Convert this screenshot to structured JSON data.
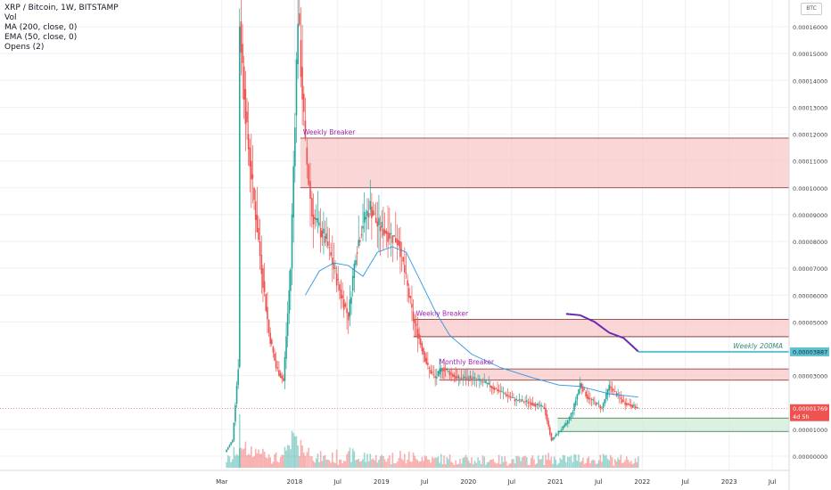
{
  "legend": {
    "symbol": "XRP / Bitcoin, 1W, BITSTAMP",
    "vol": "Vol",
    "ma": "MA (200, close, 0)",
    "ema": "EMA (50, close, 0)",
    "opens": "Opens (2)"
  },
  "currency_button": "BTC",
  "colors": {
    "up": "#26a69a",
    "down": "#ef5350",
    "ema": "#2a96e6",
    "ma200": "#6a2cae",
    "zone_red": "#f8c8c8",
    "zone_green": "#cfeeda",
    "annotation": "#9c27b0",
    "price_tag": "#ef5350",
    "ma_tag": "#5fc1cf"
  },
  "chart_data": {
    "type": "candlestick",
    "y_ticks": [
      "0.00016000",
      "0.00015000",
      "0.00014000",
      "0.00013000",
      "0.00012000",
      "0.00011000",
      "0.00010000",
      "0.00009000",
      "0.00008000",
      "0.00007000",
      "0.00006000",
      "0.00005000",
      "0.00003000",
      "0.00001000",
      "0.00000000"
    ],
    "x_ticks": [
      "Mar",
      "2018",
      "Jul",
      "2019",
      "Jul",
      "2020",
      "Jul",
      "2021",
      "Jul",
      "2022",
      "Jul",
      "2023",
      "Jul"
    ],
    "x_range": [
      "2017-03",
      "2023-07"
    ],
    "y_range": [
      0,
      0.000174
    ],
    "grid": true,
    "zones": [
      {
        "label": "Weekly Breaker",
        "bottom": 0.0001,
        "top": 0.0001185,
        "color": "red"
      },
      {
        "label": "Weekly Breaker",
        "bottom": 4.45e-05,
        "top": 5.1e-05,
        "color": "red"
      },
      {
        "label": "Monthly Breaker",
        "bottom": 2.83e-05,
        "top": 3.25e-05,
        "color": "red"
      },
      {
        "label": "",
        "bottom": 9.2e-06,
        "top": 1.42e-05,
        "color": "green"
      }
    ],
    "annotations": [
      "Weekly Breaker",
      "Weekly Breaker",
      "Monthly Breaker",
      "Weekly 200MA"
    ],
    "price_labels": [
      {
        "text": "0.00003887",
        "value": 3.887e-05,
        "kind": "ma"
      },
      {
        "text": "0.00001769",
        "value": 1.769e-05,
        "kind": "last"
      },
      {
        "text": "4d 5h",
        "value": 1.769e-05,
        "kind": "countdown"
      }
    ],
    "close_series": [
      [
        "2017-03",
        1.5e-06
      ],
      [
        "2017-04",
        6e-06
      ],
      [
        "2017-05",
        4e-05
      ],
      [
        "2017-05",
        0.000162
      ],
      [
        "2017-06",
        0.00012
      ],
      [
        "2017-07",
        9.5e-05
      ],
      [
        "2017-08",
        7e-05
      ],
      [
        "2017-09",
        4.6e-05
      ],
      [
        "2017-10",
        3.3e-05
      ],
      [
        "2017-11",
        2.8e-05
      ],
      [
        "2017-12",
        7e-05
      ],
      [
        "2018-01",
        0.000165
      ],
      [
        "2018-02",
        0.000115
      ],
      [
        "2018-03",
        9e-05
      ],
      [
        "2018-05",
        8e-05
      ],
      [
        "2018-06",
        7e-05
      ],
      [
        "2018-07",
        6e-05
      ],
      [
        "2018-08",
        5.2e-05
      ],
      [
        "2018-09",
        7.6e-05
      ],
      [
        "2018-10",
        8.7e-05
      ],
      [
        "2018-11",
        9.3e-05
      ],
      [
        "2018-12",
        8.6e-05
      ],
      [
        "2019-01",
        8.4e-05
      ],
      [
        "2019-03",
        8e-05
      ],
      [
        "2019-05",
        5.1e-05
      ],
      [
        "2019-07",
        3.3e-05
      ],
      [
        "2019-08",
        2.9e-05
      ],
      [
        "2019-09",
        3.3e-05
      ],
      [
        "2019-11",
        2.9e-05
      ],
      [
        "2020-01",
        2.9e-05
      ],
      [
        "2020-03",
        2.7e-05
      ],
      [
        "2020-05",
        2.4e-05
      ],
      [
        "2020-07",
        2.1e-05
      ],
      [
        "2020-09",
        2e-05
      ],
      [
        "2020-11",
        1.8e-05
      ],
      [
        "2020-12",
        6e-06
      ],
      [
        "2021-01",
        9e-06
      ],
      [
        "2021-02",
        1.2e-05
      ],
      [
        "2021-03",
        1.7e-05
      ],
      [
        "2021-04",
        2.7e-05
      ],
      [
        "2021-05",
        2.2e-05
      ],
      [
        "2021-07",
        1.8e-05
      ],
      [
        "2021-08",
        2.6e-05
      ],
      [
        "2021-09",
        2.3e-05
      ],
      [
        "2021-10",
        2e-05
      ],
      [
        "2021-11",
        1.9e-05
      ],
      [
        "2021-12",
        1.77e-05
      ]
    ],
    "ema_series": [
      [
        "2018-02",
        6e-05
      ],
      [
        "2018-04",
        6.9e-05
      ],
      [
        "2018-06",
        7.2e-05
      ],
      [
        "2018-08",
        7.1e-05
      ],
      [
        "2018-10",
        6.7e-05
      ],
      [
        "2018-12",
        7.6e-05
      ],
      [
        "2019-02",
        7.8e-05
      ],
      [
        "2019-04",
        7.6e-05
      ],
      [
        "2019-06",
        6.5e-05
      ],
      [
        "2019-08",
        5.4e-05
      ],
      [
        "2019-10",
        4.5e-05
      ],
      [
        "2020-01",
        3.8e-05
      ],
      [
        "2020-05",
        3.3e-05
      ],
      [
        "2020-09",
        2.95e-05
      ],
      [
        "2021-01",
        2.65e-05
      ],
      [
        "2021-04",
        2.6e-05
      ],
      [
        "2021-08",
        2.32e-05
      ],
      [
        "2021-12",
        2.2e-05
      ]
    ],
    "ma200_series": [
      [
        "2021-02",
        5.3e-05
      ],
      [
        "2021-04",
        5.25e-05
      ],
      [
        "2021-06",
        5e-05
      ],
      [
        "2021-08",
        4.6e-05
      ],
      [
        "2021-10",
        4.4e-05
      ],
      [
        "2021-12",
        3.9e-05
      ]
    ]
  }
}
